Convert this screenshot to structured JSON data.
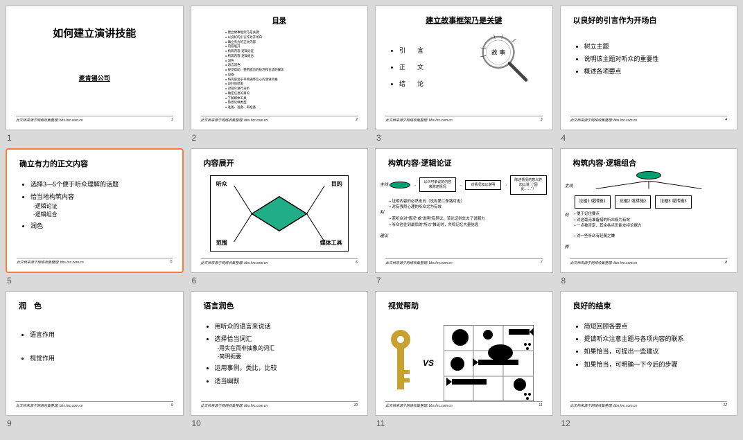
{
  "footer_text": "此文档来源于网络收集整理: bbs.hrc.com.cn",
  "slides": [
    {
      "num": "1",
      "title": "如何建立演讲技能",
      "subtitle": "麦肯锡公司"
    },
    {
      "num": "2",
      "toc_title": "目录",
      "toc": [
        "建立故事框架乃是关键",
        "以良好的引言作为开场白",
        "确立有力的正文内容",
        "内容展开",
        "构筑内容·逻辑论证",
        "构筑内容·逻辑组合",
        "润色",
        "语言润色",
        "视觉帮助：使用成功的技巧和合适的媒体",
        "设备",
        "将内容溶于平和满怀信心的演讲风格",
        "良好的结束",
        "对观众进行分析",
        "确定信息的目的",
        "了解媒体工具",
        "熟悉论样类型",
        "准备、准备、再准备"
      ]
    },
    {
      "num": "3",
      "title": "建立故事框架乃是关键",
      "center_label": "故　事",
      "items": [
        "引　言",
        "正　文",
        "结　论"
      ]
    },
    {
      "num": "4",
      "title": "以良好的引言作为开场白",
      "items": [
        "树立主题",
        "说明该主题对听众的重要性",
        "概述各项要点"
      ]
    },
    {
      "num": "5",
      "title": "确立有力的正文内容",
      "items": [
        "选择3—5个便于听众理解的话题",
        "恰当地构筑内容",
        "润色"
      ],
      "subs": [
        "-逻辑论证",
        "-逻辑组合"
      ],
      "selected": true
    },
    {
      "num": "6",
      "title": "内容展开",
      "corners": {
        "tl": "听众",
        "tr": "目的",
        "bl": "范围",
        "br": "媒体工具"
      }
    },
    {
      "num": "7",
      "title": "构筑内容·逻辑论证",
      "side": "主线",
      "b1": "以众可争议的内容来陈述情况",
      "b2": "对情况加以说明",
      "b3": "陈述情况的意义并加以说（\"因此……\"）",
      "bul1": "证明内容的必然走向（没有第二条路可走）",
      "bul2": "对有强烈心理的听众尤为有效",
      "side2": "建议",
      "bul3": "若听众对\"情况\"或\"说明\"有异议，该论证则失去了说服力",
      "bul4": "听众往往到最后的\"所以\"推论时，共鸣记忆大量信息"
    },
    {
      "num": "8",
      "title": "构筑内容·逻辑组合",
      "side": "主线",
      "b1": "论据1 或措施1",
      "b2": "论据2 或措施2",
      "b3": "论据3 或措施3",
      "side2": "利",
      "bul1": "便于记住要点",
      "bul2": "对这毫无准备措的听众极为有效",
      "bul3": "一点被否定，其余各点仍能支持论据力",
      "side3": "弊",
      "bul4": "对一些听众有轻蔑之嫌"
    },
    {
      "num": "9",
      "title": "润　色",
      "items": [
        "语言作用",
        "视觉作用"
      ]
    },
    {
      "num": "10",
      "title": "语言润色",
      "items": [
        "用听众的语言来说话",
        "选择恰当词汇",
        "运用事例，类比，比较",
        "适当幽默"
      ],
      "subs": [
        "-用实在而非抽象的词汇",
        "-简明扼要"
      ]
    },
    {
      "num": "11",
      "title": "视觉帮助",
      "vs": "VS"
    },
    {
      "num": "12",
      "title": "良好的结束",
      "items": [
        "简短回顾各要点",
        "提请听众注意主题与各项内容的联系",
        "如果恰当，可提出一些建议",
        "如果恰当，可明确一下今后的步骤"
      ]
    }
  ]
}
